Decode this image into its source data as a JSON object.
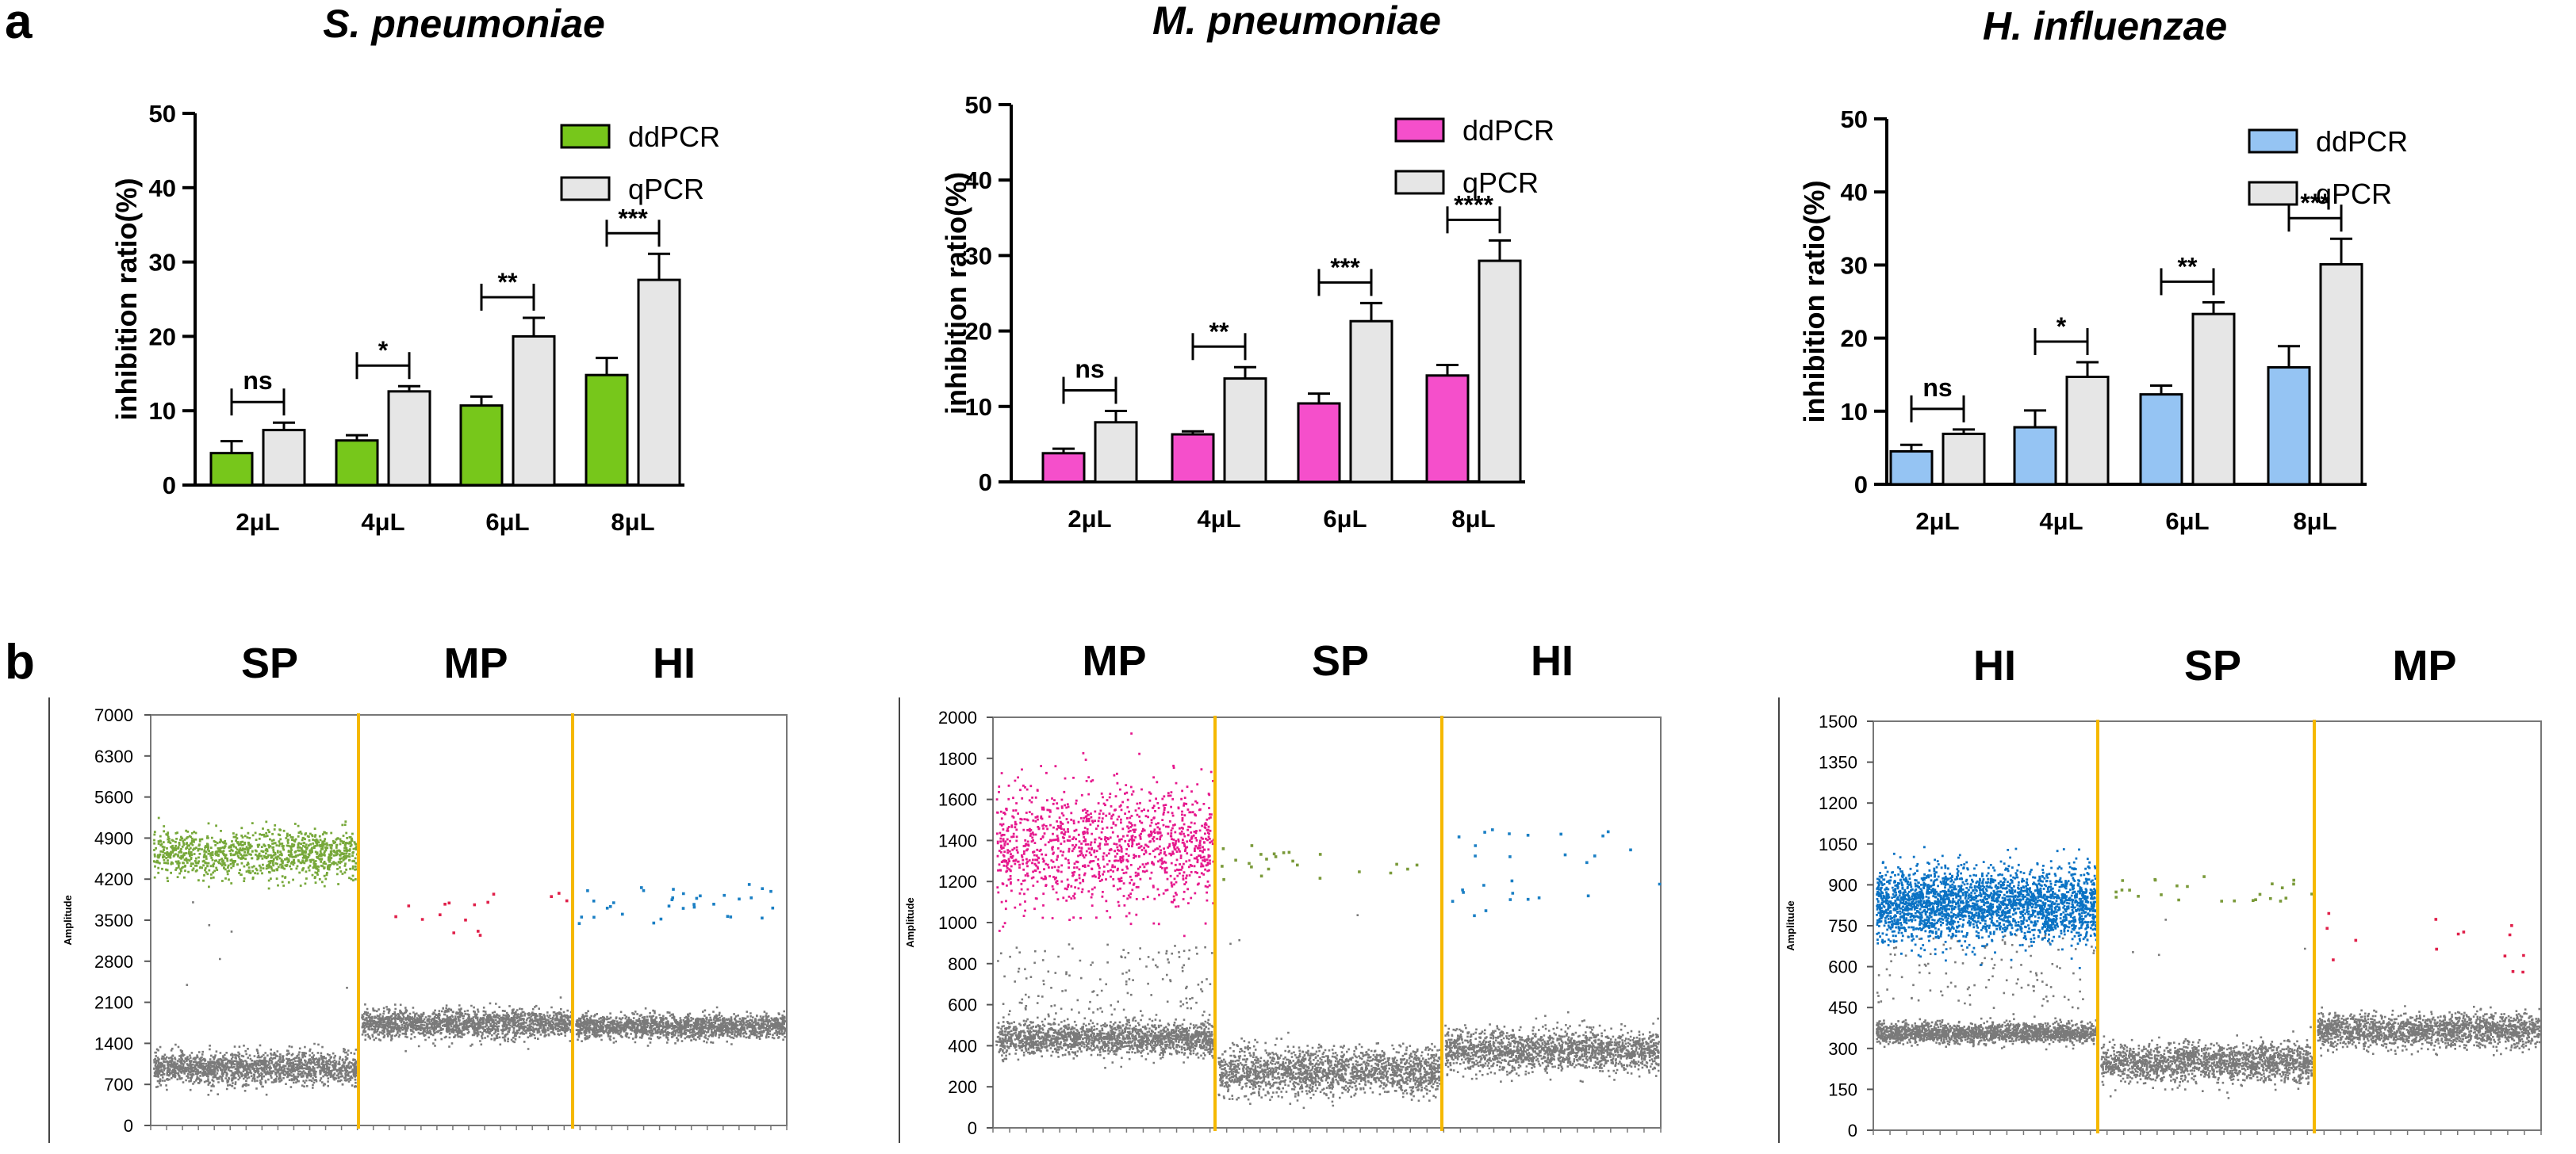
{
  "figure": {
    "panel_a_label": "a",
    "panel_b_label": "b"
  },
  "chart_data": [
    {
      "type": "bar",
      "title": "S. pneumoniae",
      "xlabel": "",
      "ylabel": "inhibition ratio(%)",
      "ylim": [
        0,
        50
      ],
      "yticks": [
        "0",
        "10",
        "20",
        "30",
        "40",
        "50"
      ],
      "categories": [
        "2μL",
        "4μL",
        "6μL",
        "8μL"
      ],
      "series": [
        {
          "name": "ddPCR",
          "color": "#77c71b",
          "values": [
            4.3,
            6.0,
            10.7,
            14.8
          ],
          "errors": [
            1.6,
            0.7,
            1.2,
            2.3
          ]
        },
        {
          "name": "qPCR",
          "color": "#e6e6e6",
          "values": [
            7.4,
            12.6,
            20.0,
            27.6
          ],
          "errors": [
            1.0,
            0.7,
            2.5,
            3.5
          ]
        }
      ],
      "significance": [
        "ns",
        "*",
        "**",
        "***"
      ],
      "legend_position": "top-right"
    },
    {
      "type": "bar",
      "title": "M. pneumoniae",
      "xlabel": "",
      "ylabel": "inhibition ratio(%)",
      "ylim": [
        0,
        50
      ],
      "yticks": [
        "0",
        "10",
        "20",
        "30",
        "40",
        "50"
      ],
      "categories": [
        "2μL",
        "4μL",
        "6μL",
        "8μL"
      ],
      "series": [
        {
          "name": "ddPCR",
          "color": "#f54fcb",
          "values": [
            3.8,
            6.3,
            10.4,
            14.1
          ],
          "errors": [
            0.6,
            0.4,
            1.3,
            1.4
          ]
        },
        {
          "name": "qPCR",
          "color": "#e6e6e6",
          "values": [
            7.9,
            13.7,
            21.3,
            29.3
          ],
          "errors": [
            1.5,
            1.5,
            2.4,
            2.7
          ]
        }
      ],
      "significance": [
        "ns",
        "**",
        "***",
        "****"
      ],
      "legend_position": "top-right"
    },
    {
      "type": "bar",
      "title": "H. influenzae",
      "xlabel": "",
      "ylabel": "inhibition ratio(%)",
      "ylim": [
        0,
        50
      ],
      "yticks": [
        "0",
        "10",
        "20",
        "30",
        "40",
        "50"
      ],
      "categories": [
        "2μL",
        "4μL",
        "6μL",
        "8μL"
      ],
      "series": [
        {
          "name": "ddPCR",
          "color": "#95c4f3",
          "values": [
            4.5,
            7.8,
            12.3,
            16.0
          ],
          "errors": [
            0.9,
            2.3,
            1.2,
            2.9
          ]
        },
        {
          "name": "qPCR",
          "color": "#e6e6e6",
          "values": [
            6.9,
            14.7,
            23.3,
            30.1
          ],
          "errors": [
            0.6,
            2.0,
            1.6,
            3.5
          ]
        }
      ],
      "significance": [
        "ns",
        "*",
        "**",
        "***"
      ],
      "legend_position": "top-right"
    },
    {
      "type": "scatter",
      "ylabel": "Amplitude",
      "ylim": [
        0,
        7000
      ],
      "yticks": [
        "0",
        "700",
        "1400",
        "2100",
        "2800",
        "3500",
        "4200",
        "4900",
        "5600",
        "6300",
        "7000"
      ],
      "sections": [
        "SP",
        "MP",
        "HI"
      ],
      "segments": [
        {
          "positive_color": "#77a83a",
          "positive_center": 4650,
          "positive_spread": 200,
          "positive_count": 1100,
          "negative_center": 1000,
          "negative_spread": 140,
          "sparse_count": 6,
          "sparse_range": [
            1500,
            4200
          ]
        },
        {
          "positive_color": "#e0204a",
          "positive_center": 3700,
          "positive_spread": 320,
          "positive_count": 16,
          "negative_center": 1750,
          "negative_spread": 120,
          "sparse_count": 0,
          "sparse_range": [
            0,
            0
          ]
        },
        {
          "positive_color": "#1a7fc4",
          "positive_center": 3800,
          "positive_spread": 260,
          "positive_count": 34,
          "negative_center": 1700,
          "negative_spread": 100,
          "sparse_count": 0,
          "sparse_range": [
            0,
            0
          ]
        }
      ],
      "divider_color": "#f5b800",
      "rain_color": "#7a7a7a"
    },
    {
      "type": "scatter",
      "ylabel": "Amplitude",
      "ylim": [
        0,
        2000
      ],
      "yticks": [
        "0",
        "200",
        "400",
        "600",
        "800",
        "1000",
        "1200",
        "1400",
        "1600",
        "1800",
        "2000"
      ],
      "sections": [
        "MP",
        "SP",
        "HI"
      ],
      "segments": [
        {
          "positive_color": "#e6188d",
          "positive_center": 1380,
          "positive_spread": 150,
          "positive_count": 1200,
          "negative_center": 440,
          "negative_spread": 40,
          "sparse_count": 140,
          "sparse_range": [
            550,
            900
          ]
        },
        {
          "positive_color": "#7a9a3a",
          "positive_center": 1300,
          "positive_spread": 60,
          "positive_count": 24,
          "negative_center": 280,
          "negative_spread": 55,
          "sparse_count": 3,
          "sparse_range": [
            700,
            1050
          ]
        },
        {
          "positive_color": "#1a7fc4",
          "positive_center": 1250,
          "positive_spread": 150,
          "positive_count": 28,
          "negative_center": 380,
          "negative_spread": 50,
          "sparse_count": 0,
          "sparse_range": [
            0,
            0
          ]
        }
      ],
      "divider_color": "#f5b800",
      "rain_color": "#7a7a7a"
    },
    {
      "type": "scatter",
      "ylabel": "Amplitude",
      "ylim": [
        0,
        1500
      ],
      "yticks": [
        "0",
        "150",
        "300",
        "450",
        "600",
        "750",
        "900",
        "1050",
        "1200",
        "1350",
        "1500"
      ],
      "sections": [
        "HI",
        "SP",
        "MP"
      ],
      "segments": [
        {
          "positive_color": "#0a72c4",
          "positive_center": 830,
          "positive_spread": 65,
          "positive_count": 2600,
          "negative_center": 360,
          "negative_spread": 18,
          "sparse_count": 120,
          "sparse_range": [
            450,
            720
          ]
        },
        {
          "positive_color": "#7a9a3a",
          "positive_center": 900,
          "positive_spread": 40,
          "positive_count": 26,
          "negative_center": 250,
          "negative_spread": 35,
          "sparse_count": 4,
          "sparse_range": [
            600,
            800
          ]
        },
        {
          "positive_color": "#e0204a",
          "positive_center": 700,
          "positive_spread": 90,
          "positive_count": 14,
          "negative_center": 370,
          "negative_spread": 30,
          "sparse_count": 0,
          "sparse_range": [
            0,
            0
          ]
        }
      ],
      "divider_color": "#f5b800",
      "rain_color": "#7a7a7a"
    }
  ]
}
